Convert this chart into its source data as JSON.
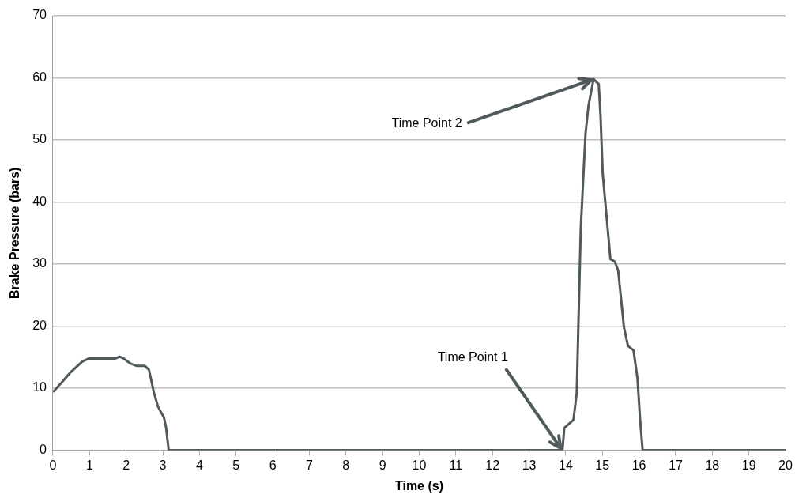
{
  "chart_data": {
    "type": "line",
    "xlabel": "Time (s)",
    "ylabel": "Brake Pressure (bars)",
    "xlim": [
      0,
      20
    ],
    "xticks": [
      0,
      1,
      2,
      3,
      4,
      5,
      6,
      7,
      8,
      9,
      10,
      11,
      12,
      13,
      14,
      15,
      16,
      17,
      18,
      19,
      20
    ],
    "ylim": [
      0,
      70
    ],
    "yticks": [
      0,
      10,
      20,
      30,
      40,
      50,
      60,
      70
    ],
    "grid": "y",
    "legend": false,
    "marker": "none",
    "line_style": "solid",
    "series": [
      {
        "color": "#505a5c",
        "x": [
          0.02,
          0.25,
          0.47,
          0.8,
          0.98,
          1.71,
          1.82,
          1.93,
          2.11,
          2.29,
          2.51,
          2.62,
          2.76,
          2.87,
          3.03,
          3.09,
          3.16,
          13.91,
          13.96,
          14.21,
          14.3,
          14.41,
          14.54,
          14.62,
          14.76,
          14.9,
          14.95,
          15.01,
          15.22,
          15.34,
          15.43,
          15.59,
          15.7,
          15.85,
          15.96,
          16.03,
          16.1,
          20
        ],
        "values": [
          9.5,
          11,
          12.5,
          14.3,
          14.8,
          14.8,
          15.1,
          14.8,
          14,
          13.6,
          13.6,
          13,
          9.2,
          7,
          5.3,
          3.6,
          0,
          0,
          3.6,
          4.9,
          9.2,
          35.7,
          51,
          55.5,
          59.8,
          59,
          53.9,
          44.5,
          30.8,
          30.4,
          29,
          19.8,
          16.8,
          16.1,
          11.5,
          4.9,
          0,
          0
        ]
      }
    ],
    "annotations": [
      {
        "text": "Time Point 1",
        "x": 13.9,
        "y": 0
      },
      {
        "text": "Time Point 2",
        "x": 14.76,
        "y": 59.8
      }
    ]
  }
}
